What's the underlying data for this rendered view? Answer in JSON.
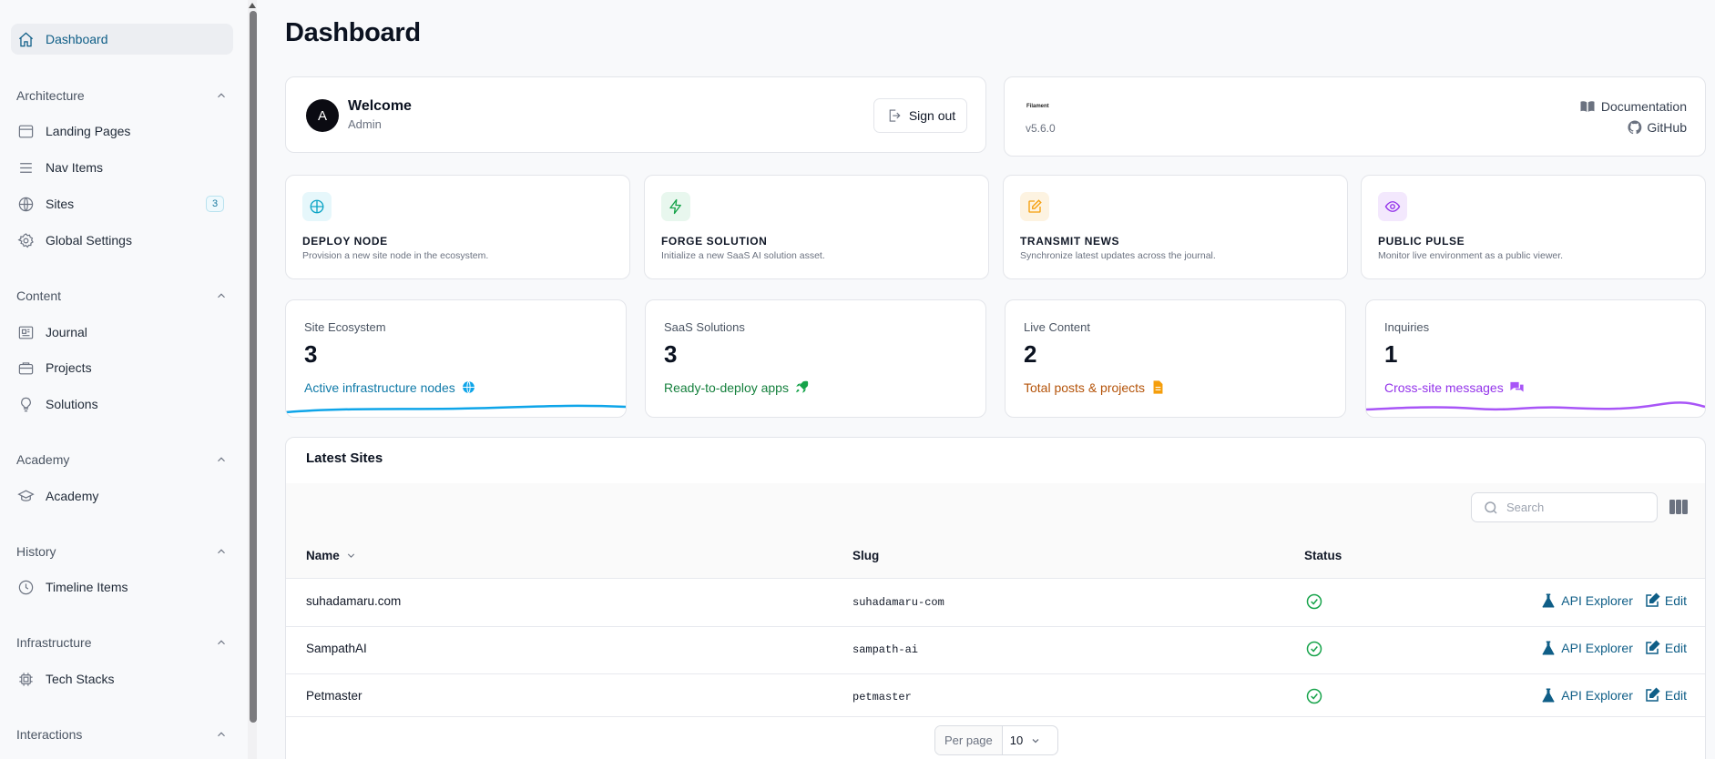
{
  "sidebar": {
    "dashboard": {
      "label": "Dashboard"
    },
    "groups": [
      {
        "label": "Architecture",
        "items": [
          "Landing Pages",
          "Nav Items",
          "Sites",
          "Global Settings"
        ]
      },
      {
        "label": "Content",
        "items": [
          "Journal",
          "Projects",
          "Solutions"
        ]
      },
      {
        "label": "Academy",
        "items": [
          "Academy"
        ]
      },
      {
        "label": "History",
        "items": [
          "Timeline Items"
        ]
      },
      {
        "label": "Infrastructure",
        "items": [
          "Tech Stacks"
        ]
      },
      {
        "label": "Interactions",
        "items": []
      }
    ],
    "sites_badge": "3"
  },
  "page": {
    "title": "Dashboard"
  },
  "account": {
    "avatar_initial": "A",
    "title": "Welcome",
    "subtitle": "Admin",
    "signout_label": "Sign out"
  },
  "filament": {
    "logo_text": "Filament",
    "version": "v5.6.0",
    "documentation_label": "Documentation",
    "github_label": "GitHub"
  },
  "actions": [
    {
      "title": "DEPLOY NODE",
      "desc": "Provision a new site node in the ecosystem.",
      "icon": "globe-icon",
      "color": "#0ea5c6",
      "bg": "#e6f7fb"
    },
    {
      "title": "FORGE SOLUTION",
      "desc": "Initialize a new SaaS AI solution asset.",
      "icon": "bolt-icon",
      "color": "#16a34a",
      "bg": "#e8f7ee"
    },
    {
      "title": "TRANSMIT NEWS",
      "desc": "Synchronize latest updates across the journal.",
      "icon": "pencil-square-icon",
      "color": "#f59e0b",
      "bg": "#fdf3e1"
    },
    {
      "title": "PUBLIC PULSE",
      "desc": "Monitor live environment as a public viewer.",
      "icon": "eye-icon",
      "color": "#9333ea",
      "bg": "#f3e8fd"
    }
  ],
  "stats": [
    {
      "label": "Site Ecosystem",
      "value": "3",
      "desc": "Active infrastructure nodes",
      "icon": "globe-icon",
      "color": "#0f7aa8",
      "spark_color": "#0ea5e9"
    },
    {
      "label": "SaaS Solutions",
      "value": "3",
      "desc": "Ready-to-deploy apps",
      "icon": "rocket-icon",
      "color": "#15803d",
      "spark_color": ""
    },
    {
      "label": "Live Content",
      "value": "2",
      "desc": "Total posts & projects",
      "icon": "document-icon",
      "color": "#b45309",
      "spark_color": ""
    },
    {
      "label": "Inquiries",
      "value": "1",
      "desc": "Cross-site messages",
      "icon": "chat-icon",
      "color": "#9333ea",
      "spark_color": "#a855f7"
    }
  ],
  "table": {
    "title": "Latest Sites",
    "search_placeholder": "Search",
    "columns": {
      "name": "Name",
      "slug": "Slug",
      "status": "Status"
    },
    "rows": [
      {
        "name": "suhadamaru.com",
        "slug": "suhadamaru-com",
        "status": "active"
      },
      {
        "name": "SampathAI",
        "slug": "sampath-ai",
        "status": "active"
      },
      {
        "name": "Petmaster",
        "slug": "petmaster",
        "status": "active"
      }
    ],
    "row_actions": {
      "api_explorer": "API Explorer",
      "edit": "Edit"
    },
    "pagination": {
      "per_page_label": "Per page",
      "per_page_value": "10"
    }
  },
  "colors": {
    "accent": "#0f5e87",
    "status_ok": "#16a34a"
  }
}
